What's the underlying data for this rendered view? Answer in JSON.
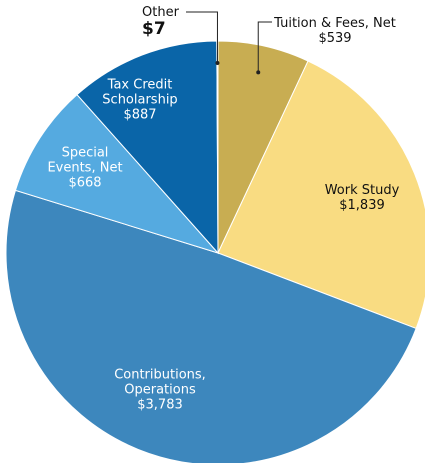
{
  "chart_data": {
    "type": "pie",
    "categories": [
      "Tuition & Fees, Net",
      "Work Study",
      "Contributions, Operations",
      "Special Events, Net",
      "Tax Credit Scholarship",
      "Other"
    ],
    "values": [
      539,
      1839,
      3783,
      668,
      887,
      7
    ],
    "value_labels": [
      "$539",
      "$1,839",
      "$3,783",
      "$668",
      "$887",
      "$7"
    ],
    "colors": [
      "#c8ad52",
      "#f9dc82",
      "#3d87bd",
      "#55aae0",
      "#0a65a8",
      "#f3cb1d"
    ]
  }
}
